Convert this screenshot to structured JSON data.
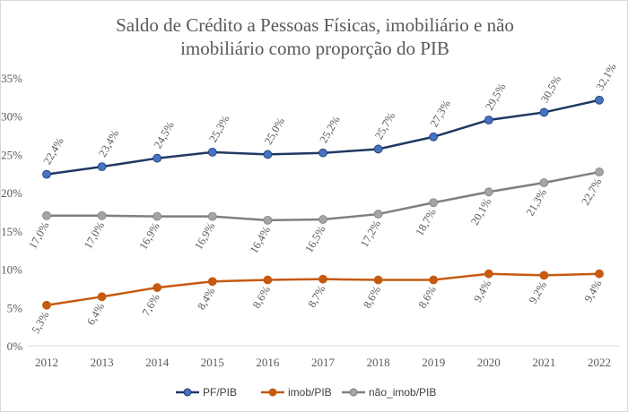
{
  "chart_data": {
    "type": "line",
    "title": [
      "Saldo de Crédito a Pessoas Físicas, imobiliário e não",
      "imobiliário como proporção do PIB"
    ],
    "categories": [
      "2012",
      "2013",
      "2014",
      "2015",
      "2016",
      "2017",
      "2018",
      "2019",
      "2020",
      "2021",
      "2022"
    ],
    "ylim": [
      0,
      35
    ],
    "yticks": [
      "0%",
      "5%",
      "10%",
      "15%",
      "20%",
      "25%",
      "30%",
      "35%"
    ],
    "grid": true,
    "legend_position": "bottom",
    "series": [
      {
        "name": "PF/PIB",
        "color": "#4472c4",
        "line_color": "#203864",
        "label_pos": "above",
        "values": [
          22.4,
          23.4,
          24.5,
          25.3,
          25.0,
          25.2,
          25.7,
          27.3,
          29.5,
          30.5,
          32.1
        ],
        "labels": [
          "22,4%",
          "23,4%",
          "24,5%",
          "25,3%",
          "25,0%",
          "25,2%",
          "25,7%",
          "27,3%",
          "29,5%",
          "30,5%",
          "32,1%"
        ]
      },
      {
        "name": "imob/PIB",
        "color": "#c55a11",
        "line_color": "#c55a11",
        "label_pos": "below",
        "values": [
          5.3,
          6.4,
          7.6,
          8.4,
          8.6,
          8.7,
          8.6,
          8.6,
          9.4,
          9.2,
          9.4
        ],
        "labels": [
          "5,3%",
          "6,4%",
          "7,6%",
          "8,4%",
          "8,6%",
          "8,7%",
          "8,6%",
          "8,6%",
          "9,4%",
          "9,2%",
          "9,4%"
        ]
      },
      {
        "name": "não_imob/PIB",
        "color": "#a5a5a5",
        "line_color": "#7f7f7f",
        "label_pos": "below",
        "values": [
          17.0,
          17.0,
          16.9,
          16.9,
          16.4,
          16.5,
          17.2,
          18.7,
          20.1,
          21.3,
          22.7
        ],
        "labels": [
          "17,0%",
          "17,0%",
          "16,9%",
          "16,9%",
          "16,4%",
          "16,5%",
          "17,2%",
          "18,7%",
          "20,1%",
          "21,3%",
          "22,7%"
        ]
      }
    ]
  }
}
